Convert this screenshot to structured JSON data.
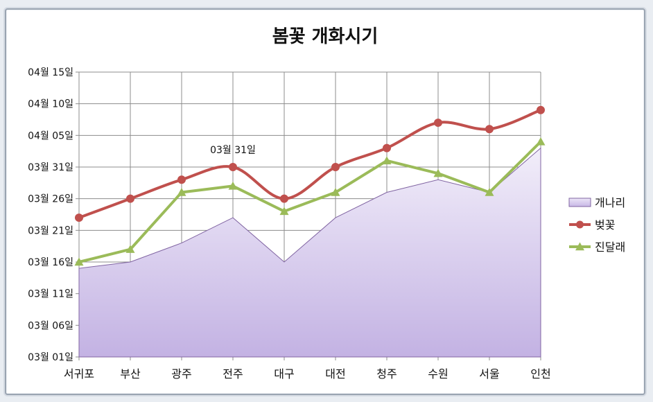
{
  "chart_data": {
    "type": "line",
    "title": "봄꽃 개화시기",
    "categories": [
      "서귀포",
      "부산",
      "광주",
      "전주",
      "대구",
      "대전",
      "청주",
      "수원",
      "서울",
      "인천"
    ],
    "y_tick_labels": [
      "03월 01일",
      "03월 06일",
      "03월 11일",
      "03월 16일",
      "03월 21일",
      "03월 26일",
      "03월 31일",
      "04월 05일",
      "04월 10일",
      "04월 15일"
    ],
    "ylim": [
      "03-01",
      "04-15"
    ],
    "grid": true,
    "legend_position": "right",
    "series": [
      {
        "name": "개나리",
        "type": "area",
        "color": "#c4b4e4",
        "values": [
          "03-15",
          "03-16",
          "03-19",
          "03-23",
          "03-16",
          "03-23",
          "03-27",
          "03-29",
          "03-27",
          "04-03"
        ]
      },
      {
        "name": "벚꽃",
        "type": "line",
        "smooth": true,
        "marker": "circle",
        "color": "#c0504d",
        "values": [
          "03-23",
          "03-26",
          "03-29",
          "03-31",
          "03-26",
          "03-31",
          "04-03",
          "04-07",
          "04-06",
          "04-09"
        ]
      },
      {
        "name": "진달래",
        "type": "line",
        "smooth": false,
        "marker": "triangle",
        "color": "#9bbb59",
        "values": [
          "03-16",
          "03-18",
          "03-27",
          "03-28",
          "03-24",
          "03-27",
          "04-01",
          "03-30",
          "03-27",
          "04-04"
        ]
      }
    ],
    "annotations": [
      {
        "text": "03월 31일",
        "series": "벚꽃",
        "category": "전주"
      }
    ]
  }
}
